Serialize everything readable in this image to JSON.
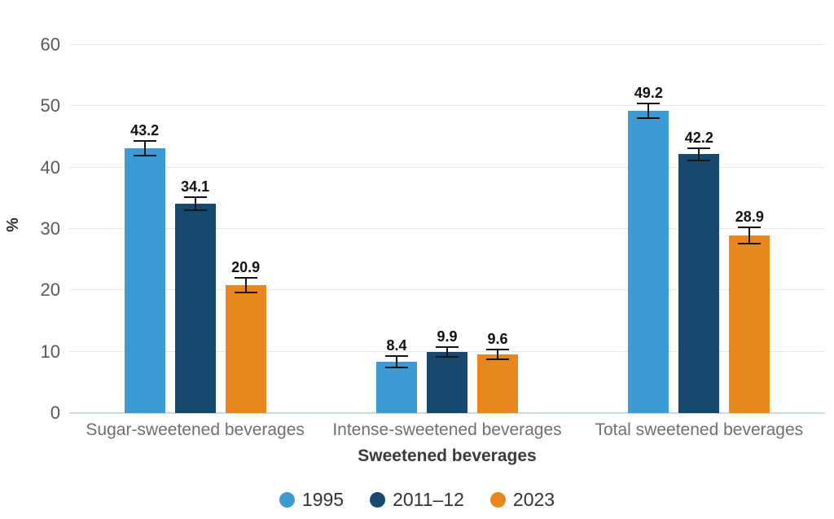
{
  "chart_data": {
    "type": "bar",
    "title": "",
    "xlabel": "Sweetened beverages",
    "ylabel": "%",
    "ylim": [
      0,
      60
    ],
    "yticks": [
      0,
      10,
      20,
      30,
      40,
      50,
      60
    ],
    "grid": true,
    "legend_position": "bottom",
    "categories": [
      "Sugar-sweetened beverages",
      "Intense-sweetened beverages",
      "Total sweetened beverages"
    ],
    "series": [
      {
        "name": "1995",
        "color": "#3d9ad2",
        "values": [
          43.2,
          8.4,
          49.2
        ],
        "errors": [
          1.2,
          0.9,
          1.2
        ]
      },
      {
        "name": "2011–12",
        "color": "#17496f",
        "values": [
          34.1,
          9.9,
          42.2
        ],
        "errors": [
          1.1,
          0.8,
          1.0
        ]
      },
      {
        "name": "2023",
        "color": "#e8871d",
        "values": [
          20.9,
          9.6,
          28.9
        ],
        "errors": [
          1.2,
          0.8,
          1.3
        ]
      }
    ],
    "data_labels": [
      "43.2",
      "34.1",
      "20.9",
      "8.4",
      "9.9",
      "9.6",
      "49.2",
      "42.2",
      "28.9"
    ],
    "colors": {
      "gridline": "#e8e8e8",
      "axis_line": "#ccdcec",
      "tick_label": "#595959",
      "category_label": "#6f6f6f",
      "axis_title": "#3a3a3a",
      "data_label": "#111111",
      "error_bar": "#141414",
      "legend_text": "#333333",
      "background": "#ffffff"
    }
  }
}
